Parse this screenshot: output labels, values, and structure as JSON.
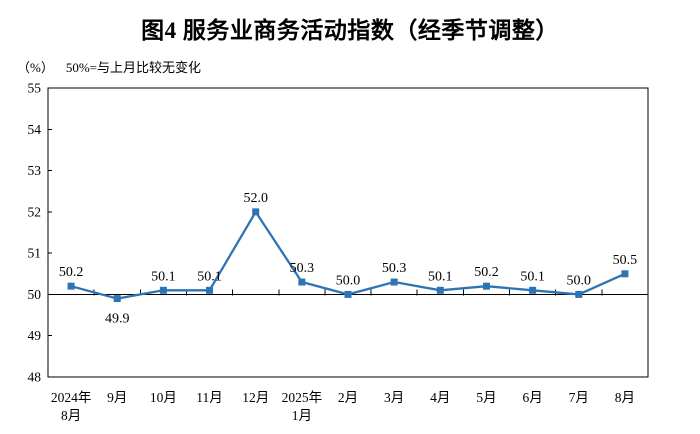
{
  "header": {
    "title": "图4 服务业商务活动指数（经季节调整）",
    "unit_label": "（%）",
    "reference_note": "50%=与上月比较无变化"
  },
  "chart_data": {
    "type": "line",
    "title": "图4 服务业商务活动指数（经季节调整）",
    "ylabel": "（%）",
    "annotation": "50%=与上月比较无变化",
    "categories": [
      "2024年|8月",
      "9月",
      "10月",
      "11月",
      "12月",
      "2025年|1月",
      "2月",
      "3月",
      "4月",
      "5月",
      "6月",
      "7月",
      "8月"
    ],
    "values": [
      50.2,
      49.9,
      50.1,
      50.1,
      52.0,
      50.3,
      50.0,
      50.3,
      50.1,
      50.2,
      50.1,
      50.0,
      50.5
    ],
    "ylim": [
      48,
      55
    ],
    "ytick_step": 1,
    "reference_line": 50,
    "grid": false,
    "legend_position": "none",
    "line_color": "#2E74B5",
    "marker_shape": "square",
    "marker_color": "#2E74B5",
    "axis_color": "#000000",
    "label_below_indices": [
      1
    ],
    "label_decimals": 1
  }
}
